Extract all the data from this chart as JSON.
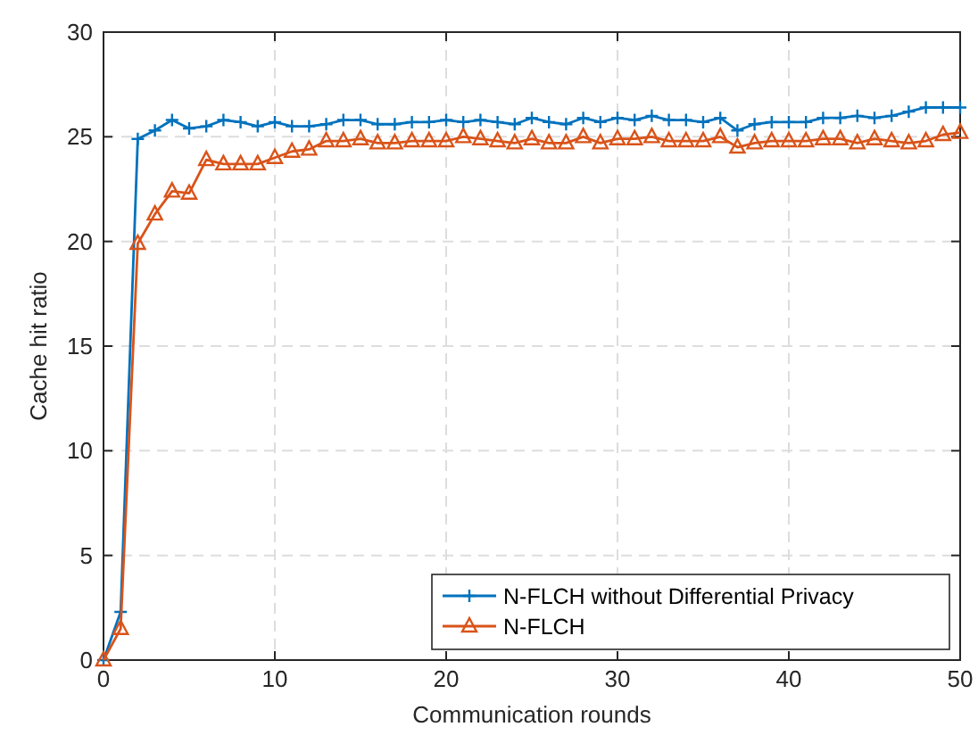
{
  "chart_data": {
    "type": "line",
    "xlabel": "Communication rounds",
    "ylabel": "Cache hit ratio",
    "x": [
      0,
      1,
      2,
      3,
      4,
      5,
      6,
      7,
      8,
      9,
      10,
      11,
      12,
      13,
      14,
      15,
      16,
      17,
      18,
      19,
      20,
      21,
      22,
      23,
      24,
      25,
      26,
      27,
      28,
      29,
      30,
      31,
      32,
      33,
      34,
      35,
      36,
      37,
      38,
      39,
      40,
      41,
      42,
      43,
      44,
      45,
      46,
      47,
      48,
      49,
      50
    ],
    "series": [
      {
        "name": "N-FLCH without Differential Privacy",
        "color": "#0072bd",
        "marker": "cross",
        "values": [
          0,
          2.3,
          24.9,
          25.3,
          25.8,
          25.4,
          25.5,
          25.8,
          25.7,
          25.5,
          25.7,
          25.5,
          25.5,
          25.6,
          25.8,
          25.8,
          25.6,
          25.6,
          25.7,
          25.7,
          25.8,
          25.7,
          25.8,
          25.7,
          25.6,
          25.9,
          25.7,
          25.6,
          25.9,
          25.7,
          25.9,
          25.8,
          26.0,
          25.8,
          25.8,
          25.7,
          25.9,
          25.3,
          25.6,
          25.7,
          25.7,
          25.7,
          25.9,
          25.9,
          26.0,
          25.9,
          26.0,
          26.2,
          26.4,
          26.4,
          26.4
        ]
      },
      {
        "name": "N-FLCH",
        "color": "#d95319",
        "marker": "triangle",
        "values": [
          0,
          1.5,
          19.9,
          21.3,
          22.4,
          22.3,
          23.9,
          23.7,
          23.7,
          23.7,
          24.0,
          24.3,
          24.4,
          24.8,
          24.8,
          24.9,
          24.7,
          24.7,
          24.8,
          24.8,
          24.8,
          25.0,
          24.9,
          24.8,
          24.7,
          24.9,
          24.7,
          24.7,
          25.0,
          24.7,
          24.9,
          24.9,
          25.0,
          24.8,
          24.8,
          24.8,
          25.0,
          24.5,
          24.7,
          24.8,
          24.8,
          24.8,
          24.9,
          24.9,
          24.7,
          24.9,
          24.8,
          24.7,
          24.8,
          25.1,
          25.2
        ]
      }
    ],
    "xlim": [
      0,
      50
    ],
    "xticks": [
      0,
      10,
      20,
      30,
      40,
      50
    ],
    "ylim": [
      0,
      30
    ],
    "yticks": [
      0,
      5,
      10,
      15,
      20,
      25,
      30
    ],
    "grid": true,
    "legend": "bottom right",
    "line_style": "solid"
  }
}
